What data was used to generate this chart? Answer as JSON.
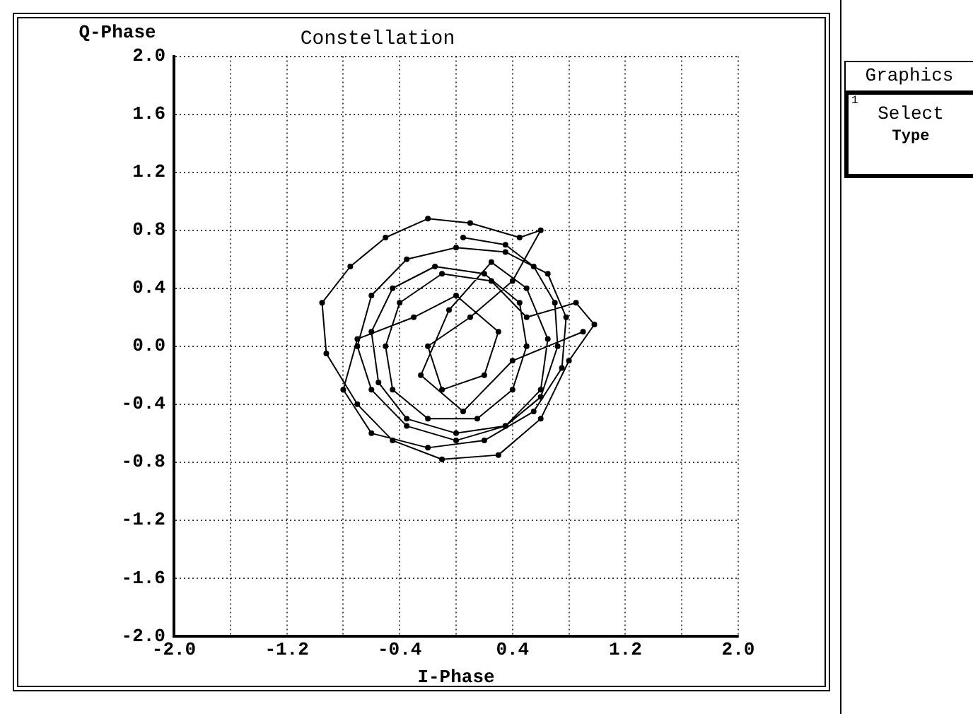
{
  "chart_data": {
    "type": "line",
    "title": "Constellation",
    "xlabel": "I-Phase",
    "ylabel": "Q-Phase",
    "annotations": [
      "Graphics",
      "1",
      "Select",
      "Type"
    ],
    "xlim": [
      -2,
      2
    ],
    "ylim": [
      -2,
      2
    ],
    "xticks": [
      {
        "value": -2,
        "label": "-2.0"
      },
      {
        "value": -1.6,
        "label": null
      },
      {
        "value": -1.2,
        "label": "-1.2"
      },
      {
        "value": -0.8,
        "label": null
      },
      {
        "value": -0.4,
        "label": "-0.4"
      },
      {
        "value": 0,
        "label": null
      },
      {
        "value": 0.4,
        "label": "0.4"
      },
      {
        "value": 0.8,
        "label": null
      },
      {
        "value": 1.2,
        "label": "1.2"
      },
      {
        "value": 1.6,
        "label": null
      },
      {
        "value": 2,
        "label": "2.0"
      }
    ],
    "yticks": [
      {
        "value": -2,
        "label": "-2.0"
      },
      {
        "value": -1.6,
        "label": "-1.6"
      },
      {
        "value": -1.2,
        "label": "-1.2"
      },
      {
        "value": -0.8,
        "label": "-0.8"
      },
      {
        "value": -0.4,
        "label": "-0.4"
      },
      {
        "value": 0,
        "label": "0.0"
      },
      {
        "value": 0.4,
        "label": "0.4"
      },
      {
        "value": 0.8,
        "label": "0.8"
      },
      {
        "value": 1.2,
        "label": "1.2"
      },
      {
        "value": 1.6,
        "label": "1.6"
      },
      {
        "value": 2,
        "label": "2.0"
      }
    ],
    "grid": true,
    "legend": false,
    "marker": "circle",
    "line_style": "solid",
    "series": [
      {
        "color": "#000000",
        "x": [
          0.05,
          0.35,
          0.55,
          0.7,
          0.72,
          0.6,
          0.35,
          0.0,
          -0.35,
          -0.55,
          -0.6,
          -0.45,
          -0.15,
          0.2,
          0.45,
          0.5,
          0.4,
          0.15,
          -0.2,
          -0.45,
          -0.5,
          -0.4,
          -0.1,
          0.25,
          0.5,
          0.85,
          0.98,
          0.8,
          0.6,
          0.3,
          -0.1,
          -0.45,
          -0.7,
          -0.92,
          -0.95,
          -0.75,
          -0.5,
          -0.2,
          0.1,
          0.45,
          0.6,
          0.4,
          0.1,
          -0.2,
          -0.1,
          0.2,
          0.3,
          0.0,
          -0.3,
          -0.7,
          -0.8,
          -0.6,
          -0.2,
          0.2,
          0.55,
          0.75,
          0.78,
          0.65,
          0.35,
          0.0,
          -0.35,
          -0.6,
          -0.7,
          -0.6,
          -0.35,
          0.0,
          0.35,
          0.6,
          0.65,
          0.5,
          0.25,
          -0.05,
          -0.25,
          0.05,
          0.4,
          0.9
        ],
        "values": [
          0.75,
          0.7,
          0.55,
          0.3,
          0.0,
          -0.35,
          -0.55,
          -0.6,
          -0.5,
          -0.25,
          0.1,
          0.4,
          0.55,
          0.5,
          0.3,
          0.0,
          -0.3,
          -0.5,
          -0.5,
          -0.3,
          0.0,
          0.3,
          0.5,
          0.45,
          0.2,
          0.3,
          0.15,
          -0.1,
          -0.5,
          -0.75,
          -0.78,
          -0.65,
          -0.4,
          -0.05,
          0.3,
          0.55,
          0.75,
          0.88,
          0.85,
          0.75,
          0.8,
          0.45,
          0.2,
          0.0,
          -0.3,
          -0.2,
          0.1,
          0.35,
          0.2,
          0.05,
          -0.3,
          -0.6,
          -0.7,
          -0.65,
          -0.45,
          -0.15,
          0.2,
          0.5,
          0.65,
          0.68,
          0.6,
          0.35,
          0.0,
          -0.3,
          -0.55,
          -0.65,
          -0.55,
          -0.3,
          0.05,
          0.4,
          0.58,
          0.25,
          -0.2,
          -0.45,
          -0.1,
          0.1
        ]
      }
    ]
  }
}
